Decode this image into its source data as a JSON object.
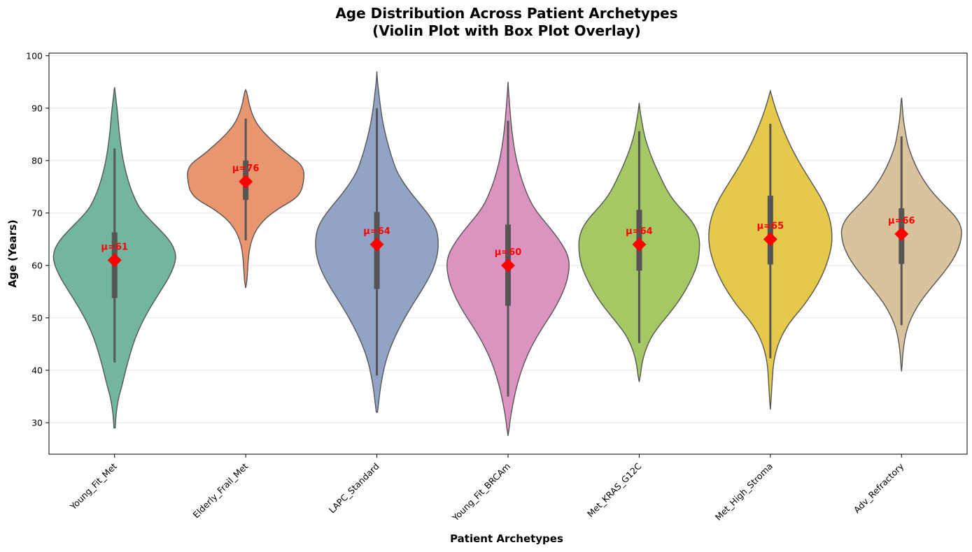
{
  "chart_data": {
    "type": "violin",
    "title_line1": "Age Distribution Across Patient Archetypes",
    "title_line2": "(Violin Plot with Box Plot Overlay)",
    "xlabel": "Patient Archetypes",
    "ylabel": "Age (Years)",
    "ylim": [
      24,
      100.5
    ],
    "yticks": [
      30,
      40,
      50,
      60,
      70,
      80,
      90,
      100
    ],
    "grid": "horizontal",
    "categories": [
      "Young_Fit_Met",
      "Elderly_Frail_Met",
      "LAPC_Standard",
      "Young_Fit_BRCAm",
      "Met_KRAS_G12C",
      "Met_High_Stroma",
      "Adv_Refractory"
    ],
    "colors": [
      "#72b6a0",
      "#e8966f",
      "#92a4c6",
      "#db94bf",
      "#a3c864",
      "#e4c94a",
      "#d9c39c"
    ],
    "series": [
      {
        "category": "Young_Fit_Met",
        "mean": 61,
        "mean_label": "μ=61",
        "box": {
          "q1": 53.8,
          "median": 61,
          "q3": 66.3,
          "whisker_low": 41.5,
          "whisker_high": 82.3
        },
        "violin_min": 29,
        "violin_max": 94,
        "density": [
          [
            29,
            0.01
          ],
          [
            31,
            0.02
          ],
          [
            33,
            0.04
          ],
          [
            35,
            0.07
          ],
          [
            37,
            0.12
          ],
          [
            40,
            0.18
          ],
          [
            43,
            0.25
          ],
          [
            46,
            0.33
          ],
          [
            49,
            0.44
          ],
          [
            52,
            0.58
          ],
          [
            55,
            0.74
          ],
          [
            58,
            0.9
          ],
          [
            61,
            1.0
          ],
          [
            63,
            0.98
          ],
          [
            65,
            0.88
          ],
          [
            67,
            0.72
          ],
          [
            69,
            0.55
          ],
          [
            71,
            0.4
          ],
          [
            74,
            0.28
          ],
          [
            77,
            0.2
          ],
          [
            80,
            0.14
          ],
          [
            83,
            0.1
          ],
          [
            86,
            0.07
          ],
          [
            89,
            0.05
          ],
          [
            91,
            0.03
          ],
          [
            93,
            0.01
          ],
          [
            94,
            0.0
          ]
        ]
      },
      {
        "category": "Elderly_Frail_Met",
        "mean": 76,
        "mean_label": "μ=76",
        "box": {
          "q1": 72.5,
          "median": 76,
          "q3": 80,
          "whisker_low": 64.8,
          "whisker_high": 88
        },
        "violin_min": 55.7,
        "violin_max": 93.5,
        "density": [
          [
            55.7,
            0.0
          ],
          [
            57,
            0.02
          ],
          [
            59,
            0.03
          ],
          [
            61,
            0.04
          ],
          [
            63,
            0.06
          ],
          [
            65,
            0.1
          ],
          [
            67,
            0.18
          ],
          [
            69,
            0.32
          ],
          [
            71,
            0.55
          ],
          [
            72.5,
            0.78
          ],
          [
            74,
            0.9
          ],
          [
            76,
            0.94
          ],
          [
            78,
            0.95
          ],
          [
            79.5,
            0.88
          ],
          [
            81,
            0.7
          ],
          [
            83,
            0.5
          ],
          [
            85,
            0.32
          ],
          [
            87,
            0.18
          ],
          [
            89,
            0.1
          ],
          [
            91,
            0.05
          ],
          [
            93,
            0.02
          ],
          [
            93.5,
            0.0
          ]
        ]
      },
      {
        "category": "LAPC_Standard",
        "mean": 64,
        "mean_label": "μ=64",
        "box": {
          "q1": 55.5,
          "median": 64,
          "q3": 70.2,
          "whisker_low": 39,
          "whisker_high": 90
        },
        "violin_min": 32,
        "violin_max": 97,
        "density": [
          [
            32,
            0.01
          ],
          [
            34,
            0.03
          ],
          [
            36,
            0.05
          ],
          [
            39,
            0.09
          ],
          [
            42,
            0.15
          ],
          [
            45,
            0.24
          ],
          [
            48,
            0.36
          ],
          [
            51,
            0.5
          ],
          [
            54,
            0.66
          ],
          [
            57,
            0.82
          ],
          [
            60,
            0.94
          ],
          [
            63,
            1.0
          ],
          [
            66,
            0.99
          ],
          [
            68,
            0.93
          ],
          [
            70,
            0.82
          ],
          [
            72,
            0.68
          ],
          [
            74,
            0.54
          ],
          [
            76,
            0.42
          ],
          [
            78,
            0.32
          ],
          [
            81,
            0.23
          ],
          [
            84,
            0.16
          ],
          [
            87,
            0.1
          ],
          [
            90,
            0.06
          ],
          [
            93,
            0.03
          ],
          [
            95,
            0.01
          ],
          [
            97,
            0.0
          ]
        ]
      },
      {
        "category": "Young_Fit_BRCAm",
        "mean": 60,
        "mean_label": "μ=60",
        "box": {
          "q1": 52.3,
          "median": 60,
          "q3": 67.8,
          "whisker_low": 35,
          "whisker_high": 87.6
        },
        "violin_min": 27.5,
        "violin_max": 95,
        "density": [
          [
            27.5,
            0.0
          ],
          [
            29,
            0.02
          ],
          [
            31,
            0.04
          ],
          [
            33,
            0.07
          ],
          [
            36,
            0.12
          ],
          [
            39,
            0.19
          ],
          [
            42,
            0.28
          ],
          [
            45,
            0.4
          ],
          [
            48,
            0.55
          ],
          [
            51,
            0.72
          ],
          [
            54,
            0.86
          ],
          [
            57,
            0.96
          ],
          [
            60,
            1.0
          ],
          [
            62,
            0.97
          ],
          [
            64,
            0.88
          ],
          [
            66,
            0.76
          ],
          [
            68,
            0.62
          ],
          [
            70,
            0.48
          ],
          [
            72,
            0.37
          ],
          [
            75,
            0.26
          ],
          [
            78,
            0.18
          ],
          [
            81,
            0.12
          ],
          [
            84,
            0.08
          ],
          [
            87,
            0.05
          ],
          [
            90,
            0.03
          ],
          [
            93,
            0.01
          ],
          [
            95,
            0.0
          ]
        ]
      },
      {
        "category": "Met_KRAS_G12C",
        "mean": 64,
        "mean_label": "μ=64",
        "box": {
          "q1": 59,
          "median": 64,
          "q3": 70.6,
          "whisker_low": 45.2,
          "whisker_high": 85.6
        },
        "violin_min": 37.8,
        "violin_max": 91,
        "density": [
          [
            37.8,
            0.0
          ],
          [
            39,
            0.02
          ],
          [
            41,
            0.04
          ],
          [
            43,
            0.08
          ],
          [
            45,
            0.14
          ],
          [
            47,
            0.23
          ],
          [
            49,
            0.36
          ],
          [
            51,
            0.5
          ],
          [
            53,
            0.63
          ],
          [
            55,
            0.74
          ],
          [
            57,
            0.83
          ],
          [
            59,
            0.91
          ],
          [
            61,
            0.96
          ],
          [
            63,
            0.98
          ],
          [
            65,
            0.98
          ],
          [
            67,
            0.93
          ],
          [
            69,
            0.82
          ],
          [
            71,
            0.66
          ],
          [
            73,
            0.52
          ],
          [
            75,
            0.42
          ],
          [
            77,
            0.34
          ],
          [
            79,
            0.26
          ],
          [
            81,
            0.19
          ],
          [
            83,
            0.13
          ],
          [
            85,
            0.08
          ],
          [
            87,
            0.05
          ],
          [
            89,
            0.02
          ],
          [
            91,
            0.0
          ]
        ]
      },
      {
        "category": "Met_High_Stroma",
        "mean": 65,
        "mean_label": "μ=65",
        "box": {
          "q1": 60.2,
          "median": 65,
          "q3": 73.3,
          "whisker_low": 42.3,
          "whisker_high": 87
        },
        "violin_min": 32.5,
        "violin_max": 93.3,
        "density": [
          [
            32.5,
            0.0
          ],
          [
            34,
            0.01
          ],
          [
            36,
            0.02
          ],
          [
            38,
            0.03
          ],
          [
            40,
            0.04
          ],
          [
            42,
            0.06
          ],
          [
            44,
            0.1
          ],
          [
            46,
            0.16
          ],
          [
            48,
            0.25
          ],
          [
            50,
            0.37
          ],
          [
            52,
            0.52
          ],
          [
            55,
            0.7
          ],
          [
            58,
            0.84
          ],
          [
            61,
            0.94
          ],
          [
            64,
            1.0
          ],
          [
            67,
            1.0
          ],
          [
            70,
            0.94
          ],
          [
            73,
            0.82
          ],
          [
            76,
            0.66
          ],
          [
            79,
            0.5
          ],
          [
            82,
            0.36
          ],
          [
            85,
            0.24
          ],
          [
            88,
            0.14
          ],
          [
            90,
            0.08
          ],
          [
            92,
            0.03
          ],
          [
            93.3,
            0.0
          ]
        ]
      },
      {
        "category": "Adv_Refractory",
        "mean": 66,
        "mean_label": "μ=66",
        "box": {
          "q1": 60.3,
          "median": 66,
          "q3": 70.9,
          "whisker_low": 48.6,
          "whisker_high": 84.6
        },
        "violin_min": 39.8,
        "violin_max": 92,
        "density": [
          [
            39.8,
            0.0
          ],
          [
            41,
            0.01
          ],
          [
            43,
            0.02
          ],
          [
            45,
            0.04
          ],
          [
            47,
            0.07
          ],
          [
            49,
            0.12
          ],
          [
            51,
            0.2
          ],
          [
            53,
            0.3
          ],
          [
            55,
            0.43
          ],
          [
            57,
            0.57
          ],
          [
            59,
            0.71
          ],
          [
            61,
            0.83
          ],
          [
            63,
            0.92
          ],
          [
            65,
            0.97
          ],
          [
            67,
            0.98
          ],
          [
            69,
            0.9
          ],
          [
            71,
            0.74
          ],
          [
            73,
            0.57
          ],
          [
            75,
            0.43
          ],
          [
            77,
            0.32
          ],
          [
            79,
            0.23
          ],
          [
            81,
            0.16
          ],
          [
            83,
            0.1
          ],
          [
            85,
            0.07
          ],
          [
            87,
            0.04
          ],
          [
            89,
            0.02
          ],
          [
            91,
            0.01
          ],
          [
            92,
            0.0
          ]
        ]
      }
    ]
  }
}
